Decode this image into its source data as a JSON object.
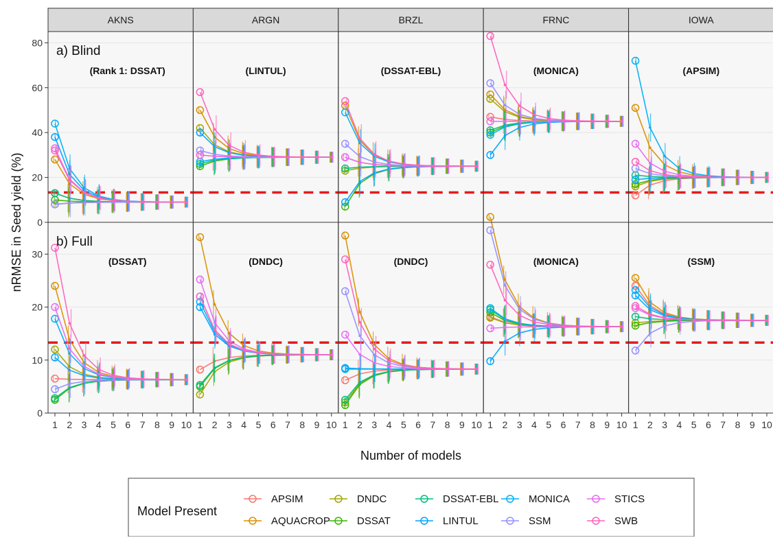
{
  "chart_data": {
    "type": "line",
    "facet_columns": [
      "AKNS",
      "ARGN",
      "BRZL",
      "FRNC",
      "IOWA"
    ],
    "rows": [
      {
        "label": "a) Blind",
        "ylim": [
          0,
          85
        ],
        "yticks": [
          0,
          20,
          40,
          60,
          80
        ],
        "best_models": [
          "(Rank 1: DSSAT)",
          "(LINTUL)",
          "(DSSAT-EBL)",
          "(MONICA)",
          "(APSIM)"
        ]
      },
      {
        "label": "b) Full",
        "ylim": [
          0,
          36
        ],
        "yticks": [
          0,
          10,
          20,
          30
        ],
        "best_models": [
          "(DSSAT)",
          "(DNDC)",
          "(DNDC)",
          "(MONICA)",
          "(SSM)"
        ]
      }
    ],
    "x": [
      1,
      2,
      3,
      4,
      5,
      6,
      7,
      8,
      9,
      10
    ],
    "xlabel": "Number of models",
    "ylabel": "nRMSE in Seed yield (%)",
    "reference_line": 13.3,
    "legend": {
      "title": "Model Present",
      "placement": "bottom",
      "entries": [
        {
          "name": "APSIM",
          "color": "#F8766D"
        },
        {
          "name": "AQUACROP",
          "color": "#D89000"
        },
        {
          "name": "DNDC",
          "color": "#A3A500"
        },
        {
          "name": "DSSAT",
          "color": "#39B600"
        },
        {
          "name": "DSSAT-EBL",
          "color": "#00BF7D"
        },
        {
          "name": "LINTUL",
          "color": "#00A5FF"
        },
        {
          "name": "MONICA",
          "color": "#00B0F6"
        },
        {
          "name": "SSM",
          "color": "#9590FF"
        },
        {
          "name": "STICS",
          "color": "#E76BF3"
        },
        {
          "name": "SWB",
          "color": "#FF62BC"
        }
      ]
    },
    "panels": {
      "0_0": {
        "start": [
          13,
          28,
          8,
          10,
          13,
          38,
          44,
          8,
          33,
          32
        ],
        "end": 9
      },
      "0_1": {
        "start": [
          30,
          50,
          42,
          25,
          26,
          40,
          27,
          32,
          30,
          58
        ],
        "end": 29
      },
      "0_2": {
        "start": [
          29,
          52,
          23,
          7,
          24,
          9,
          49,
          35,
          29,
          54
        ],
        "end": 25
      },
      "0_3": {
        "start": [
          47,
          57,
          55,
          40,
          41,
          30,
          39,
          62,
          45,
          83
        ],
        "end": 45
      },
      "0_4": {
        "start": [
          12,
          51,
          16,
          17,
          21,
          19,
          72,
          24,
          35,
          27
        ],
        "end": 20
      },
      "1_0": {
        "start": [
          6.5,
          24,
          12,
          2.5,
          2.8,
          10.5,
          17.8,
          4.5,
          20,
          31.2
        ],
        "end": 6.3
      },
      "1_1": {
        "start": [
          8.2,
          33.2,
          3.5,
          5,
          5.3,
          20,
          21,
          22,
          25.2,
          22
        ],
        "end": 11
      },
      "1_2": {
        "start": [
          6.2,
          33.5,
          2,
          1.5,
          2.5,
          8.5,
          8.3,
          23,
          14.8,
          29
        ],
        "end": 8.3
      },
      "1_3": {
        "start": [
          18.2,
          37,
          18,
          19,
          19.5,
          9.8,
          19.8,
          34.5,
          16,
          28
        ],
        "end": 16.3
      },
      "1_4": {
        "start": [
          24,
          25.5,
          17,
          16.5,
          18.2,
          22.2,
          23.2,
          11.8,
          19.8,
          20.2
        ],
        "end": 17.5
      }
    }
  }
}
